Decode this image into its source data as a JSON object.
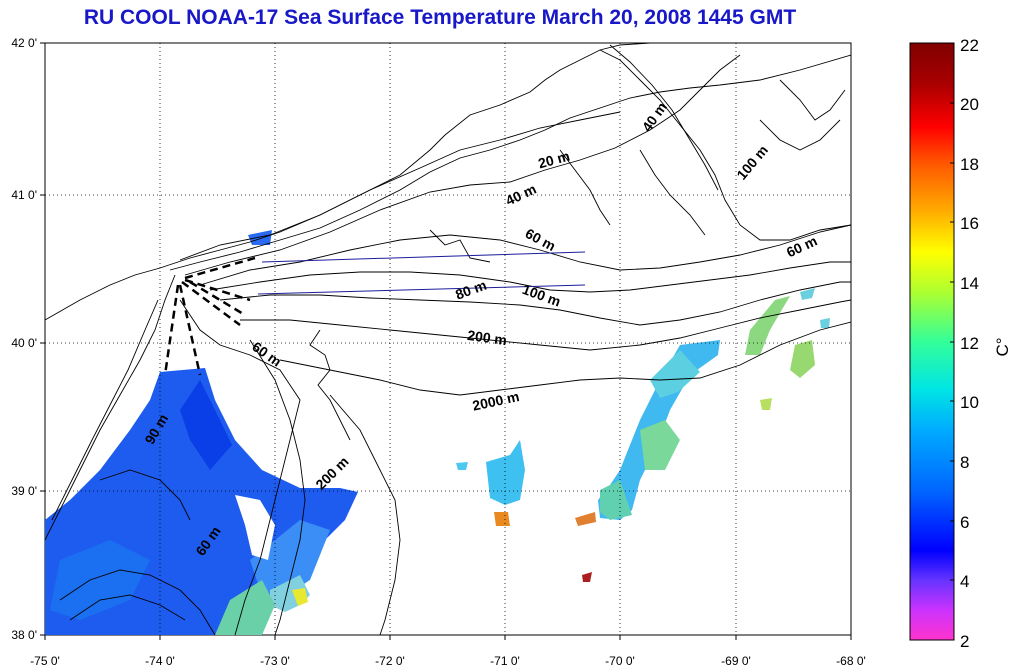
{
  "title": "RU COOL  NOAA-17 Sea Surface Temperature March 20, 2008 1445 GMT",
  "map": {
    "lon_labels": [
      "-75 0'",
      "-74 0'",
      "-73 0'",
      "-72 0'",
      "-71 0'",
      "-70 0'",
      "-69 0'",
      "-68 0'"
    ],
    "lat_labels": [
      "42 0'",
      "41 0'",
      "40 0'",
      "39 0'",
      "38 0'"
    ],
    "lon_range": [
      -75,
      -68
    ],
    "lat_range": [
      38,
      42
    ],
    "grid": "dotted",
    "depth_labels": [
      "40 m",
      "20 m",
      "40 m",
      "100 m",
      "60 m",
      "60 m",
      "80 m",
      "100 m",
      "200 m",
      "2000 m",
      "60 m",
      "90 m",
      "200 m",
      "60 m"
    ]
  },
  "colorbar": {
    "unit": "C°",
    "ticks": [
      "22",
      "20",
      "18",
      "16",
      "14",
      "12",
      "10",
      "8",
      "6",
      "4",
      "2"
    ],
    "range": [
      2,
      22
    ],
    "colors": [
      "#ff33cc",
      "#cc33ff",
      "#6633ff",
      "#0000ff",
      "#0066ff",
      "#00aaff",
      "#00e5e5",
      "#33ff99",
      "#aaff33",
      "#ffff00",
      "#ffaa00",
      "#ff5500",
      "#ff0000",
      "#aa0000",
      "#800000"
    ]
  }
}
